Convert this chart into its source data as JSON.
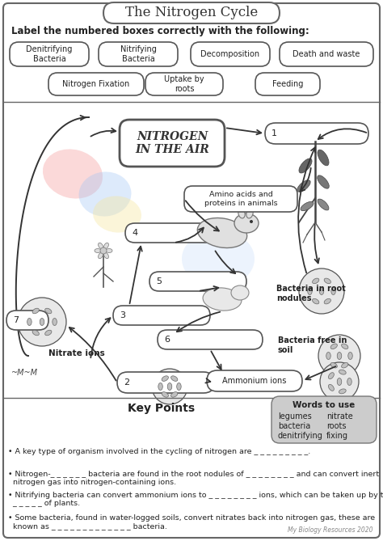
{
  "title": "The Nitrogen Cycle",
  "bg_color": "#ffffff",
  "label_instruction": "Label the numbered boxes correctly with the following:",
  "word_bank_row1": [
    "Denitrifying\nBacteria",
    "Nitrifying\nBacteria",
    "Decomposition",
    "Death and waste"
  ],
  "word_bank_row2": [
    "Nitrogen Fixation",
    "Uptake by\nroots",
    "Feeding"
  ],
  "nitrogen_air_label": "NITROGEN\nIN THE AIR",
  "amino_acids_label": "Amino acids and\nproteins in animals",
  "nitrate_ions_label": "Nitrate ions",
  "ammonium_ions_label": "Ammonium ions",
  "bacteria_root_label": "Bacteria in root\nnodules",
  "bacteria_free_label": "Bacteria free in\nsoil",
  "key_points_title": "Key Points",
  "words_to_use_title": "Words to use",
  "words_to_use": [
    "legumes",
    "nitrate",
    "bacteria",
    "roots",
    "denitrifying",
    "fixing"
  ],
  "key_point_1": "• A key type of organism involved in the cycling of nitrogen are _ _ _ _ _ _ _ _ _.",
  "key_point_2": "• Nitrogen-_ _ _ _ _ _ bacteria are found in the root nodules of _ _ _ _ _ _ _ _ and can convert inert\n  nitrogen gas into nitrogen-containing ions.",
  "key_point_3": "• Nitrifying bacteria can convert ammonium ions to _ _ _ _ _ _ _ _ ions, which can be taken up by the\n  _ _ _ _ _ of plants.",
  "key_point_4": "• Some bacteria, found in water-logged soils, convert nitrates back into nitrogen gas, these are\n  known as _ _ _ _ _ _ _ _ _ _ _ _ _ bacteria.",
  "footer": "My Biology Resources 2020",
  "pastel_red": "#f5a0a0",
  "pastel_blue": "#a0c4f5",
  "pastel_yellow": "#f5e6a0"
}
